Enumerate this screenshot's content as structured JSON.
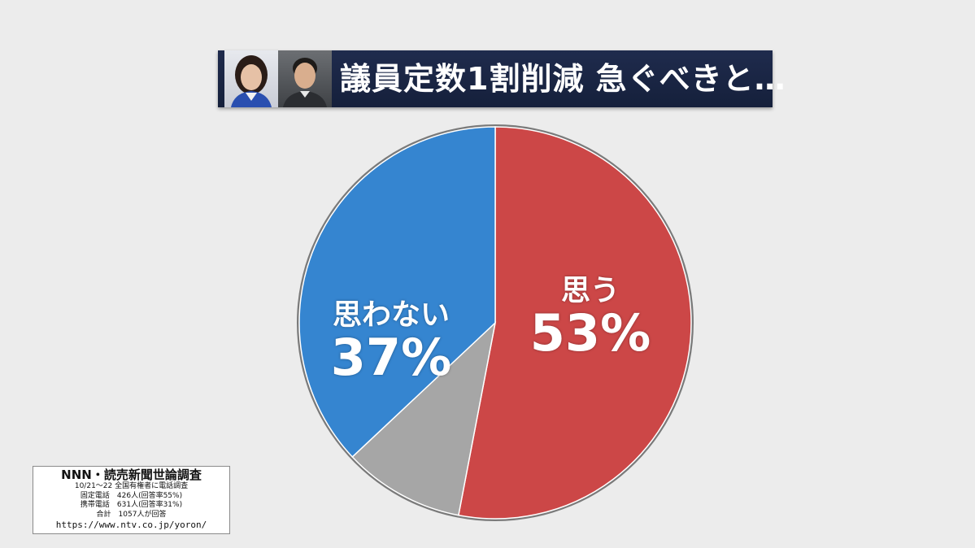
{
  "header": {
    "title": "議員定数1割削減 急ぐべきと…"
  },
  "chart_data": {
    "type": "pie",
    "start_angle_deg": 0,
    "direction": "clockwise",
    "slices": [
      {
        "label": "思う",
        "value": 53,
        "display": "53%",
        "color": "#cc4747"
      },
      {
        "label": "",
        "value": 10,
        "display": "",
        "color": "#a6a6a6"
      },
      {
        "label": "思わない",
        "value": 37,
        "display": "37%",
        "color": "#3585d0"
      }
    ],
    "slice_order_note": "",
    "border_color": "#7a7a7a"
  },
  "source": {
    "title": "NNN・読売新聞世論調査",
    "lines": [
      "10/21～22 全国有権者に電話調査",
      "固定電話　426人(回答率55%)",
      "携帯電話　631人(回答率31%)",
      "合計　1057人が回答"
    ],
    "url": "https://www.ntv.co.jp/yoron/"
  }
}
